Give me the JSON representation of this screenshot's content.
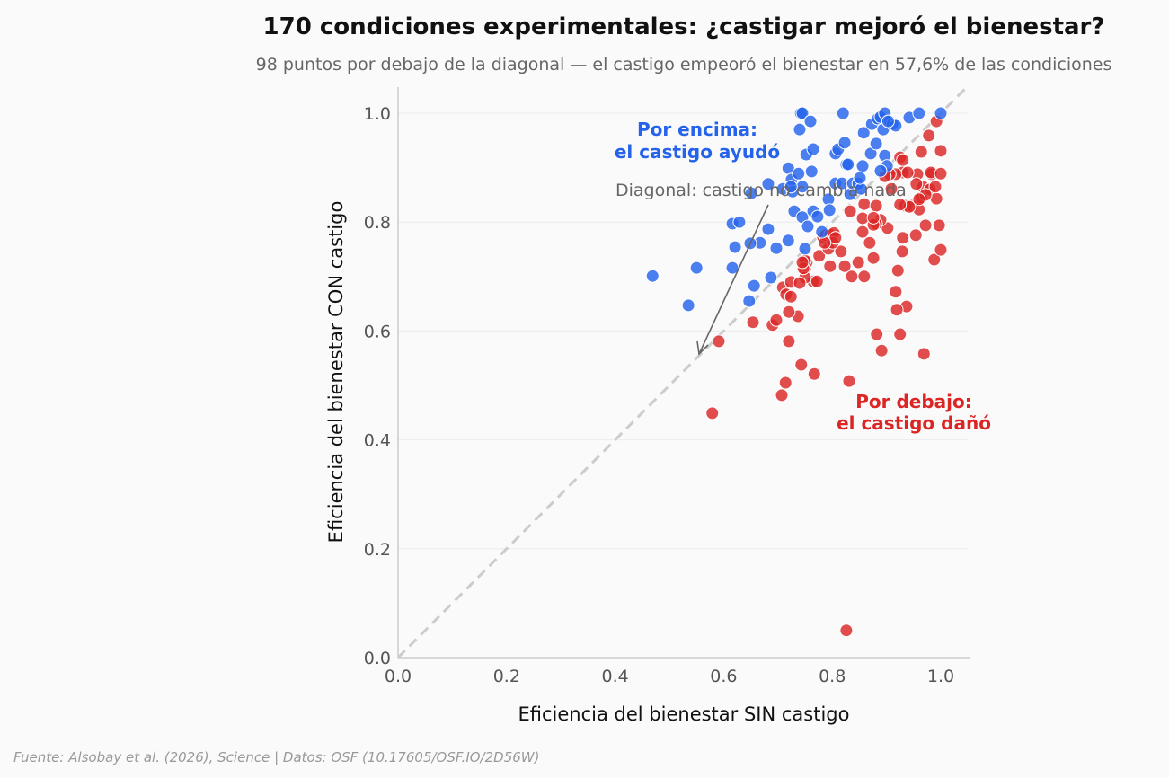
{
  "chart_data": {
    "type": "scatter",
    "title": "170 condiciones experimentales: ¿castigar mejoró el bienestar?",
    "subtitle": "98 puntos por debajo de la diagonal — el castigo empeoró el bienestar en 57,6% de las condiciones",
    "xlabel": "Eficiencia del bienestar SIN castigo",
    "ylabel": "Eficiencia del bienestar CON castigo",
    "xlim": [
      0,
      1.05
    ],
    "ylim": [
      0,
      1.05
    ],
    "xticks": [
      "0.0",
      "0.2",
      "0.4",
      "0.6",
      "0.8",
      "1.0"
    ],
    "yticks": [
      "0.0",
      "0.2",
      "0.4",
      "0.6",
      "0.8",
      "1.0"
    ],
    "grid": true,
    "legend": "none",
    "colors": {
      "above": "#2563eb",
      "below": "#dc2626",
      "diagonal": "#cccccc"
    },
    "annotations": {
      "above_line1": "Por encima:",
      "above_line2": "el castigo ayudó",
      "diagonal": "Diagonal: castigo no cambia nada",
      "below_line1": "Por debajo:",
      "below_line2": "el castigo dañó"
    },
    "points_above": [
      [
        0.469,
        0.701
      ],
      [
        0.535,
        0.647
      ],
      [
        0.55,
        0.716
      ],
      [
        0.616,
        0.797
      ],
      [
        0.629,
        0.8
      ],
      [
        0.621,
        0.754
      ],
      [
        0.616,
        0.716
      ],
      [
        0.651,
        0.853
      ],
      [
        0.647,
        0.655
      ],
      [
        0.656,
        0.683
      ],
      [
        0.667,
        0.762
      ],
      [
        0.649,
        0.761
      ],
      [
        0.682,
        0.87
      ],
      [
        0.682,
        0.787
      ],
      [
        0.687,
        0.698
      ],
      [
        0.697,
        0.752
      ],
      [
        0.709,
        0.861
      ],
      [
        0.719,
        0.899
      ],
      [
        0.719,
        0.766
      ],
      [
        0.725,
        0.878
      ],
      [
        0.727,
        0.856
      ],
      [
        0.73,
        0.82
      ],
      [
        0.74,
        0.97
      ],
      [
        0.742,
        1.0
      ],
      [
        0.745,
        1.0
      ],
      [
        0.745,
        0.865
      ],
      [
        0.745,
        0.809
      ],
      [
        0.75,
        0.751
      ],
      [
        0.752,
        0.924
      ],
      [
        0.755,
        0.792
      ],
      [
        0.76,
        0.985
      ],
      [
        0.762,
        0.893
      ],
      [
        0.765,
        0.934
      ],
      [
        0.765,
        0.82
      ],
      [
        0.773,
        0.81
      ],
      [
        0.781,
        0.782
      ],
      [
        0.793,
        0.842
      ],
      [
        0.795,
        0.822
      ],
      [
        0.806,
        0.926
      ],
      [
        0.811,
        0.934
      ],
      [
        0.82,
        1.0
      ],
      [
        0.823,
        0.946
      ],
      [
        0.826,
        0.906
      ],
      [
        0.829,
        0.906
      ],
      [
        0.833,
        0.851
      ],
      [
        0.806,
        0.871
      ],
      [
        0.818,
        0.871
      ],
      [
        0.838,
        0.871
      ],
      [
        0.848,
        0.871
      ],
      [
        0.853,
        0.861
      ],
      [
        0.856,
        0.903
      ],
      [
        0.858,
        0.964
      ],
      [
        0.871,
        0.926
      ],
      [
        0.873,
        0.98
      ],
      [
        0.881,
        0.944
      ],
      [
        0.884,
        0.99
      ],
      [
        0.889,
        0.993
      ],
      [
        0.897,
        1.0
      ],
      [
        0.894,
        0.97
      ],
      [
        0.897,
        0.922
      ],
      [
        0.901,
        0.903
      ],
      [
        0.906,
        0.985
      ],
      [
        0.911,
        0.98
      ],
      [
        0.917,
        0.977
      ],
      [
        0.942,
        0.992
      ],
      [
        0.96,
        1.0
      ],
      [
        1.0,
        1.0
      ],
      [
        0.889,
        0.894
      ],
      [
        0.851,
        0.881
      ],
      [
        0.738,
        0.889
      ],
      [
        0.724,
        0.865
      ],
      [
        0.903,
        0.985
      ]
    ],
    "points_below": [
      [
        0.826,
        0.05
      ],
      [
        0.579,
        0.449
      ],
      [
        0.591,
        0.581
      ],
      [
        0.654,
        0.616
      ],
      [
        0.69,
        0.611
      ],
      [
        0.697,
        0.62
      ],
      [
        0.707,
        0.482
      ],
      [
        0.714,
        0.505
      ],
      [
        0.72,
        0.581
      ],
      [
        0.737,
        0.627
      ],
      [
        0.743,
        0.538
      ],
      [
        0.767,
        0.521
      ],
      [
        0.709,
        0.68
      ],
      [
        0.715,
        0.667
      ],
      [
        0.724,
        0.69
      ],
      [
        0.72,
        0.635
      ],
      [
        0.75,
        0.713
      ],
      [
        0.753,
        0.726
      ],
      [
        0.765,
        0.691
      ],
      [
        0.772,
        0.691
      ],
      [
        0.776,
        0.738
      ],
      [
        0.783,
        0.772
      ],
      [
        0.788,
        0.776
      ],
      [
        0.796,
        0.777
      ],
      [
        0.793,
        0.751
      ],
      [
        0.796,
        0.719
      ],
      [
        0.816,
        0.746
      ],
      [
        0.823,
        0.719
      ],
      [
        0.831,
        0.508
      ],
      [
        0.836,
        0.7
      ],
      [
        0.848,
        0.726
      ],
      [
        0.859,
        0.7
      ],
      [
        0.869,
        0.762
      ],
      [
        0.876,
        0.734
      ],
      [
        0.882,
        0.594
      ],
      [
        0.891,
        0.564
      ],
      [
        0.969,
        0.558
      ],
      [
        0.937,
        0.645
      ],
      [
        0.925,
        0.594
      ],
      [
        0.919,
        0.639
      ],
      [
        0.917,
        0.672
      ],
      [
        0.921,
        0.711
      ],
      [
        0.929,
        0.746
      ],
      [
        0.93,
        0.771
      ],
      [
        0.934,
        0.83
      ],
      [
        0.947,
        0.83
      ],
      [
        0.954,
        0.776
      ],
      [
        0.96,
        0.823
      ],
      [
        0.964,
        0.845
      ],
      [
        0.967,
        0.865
      ],
      [
        0.972,
        0.794
      ],
      [
        0.98,
        0.86
      ],
      [
        0.988,
        0.731
      ],
      [
        0.997,
        0.794
      ],
      [
        1.0,
        0.749
      ],
      [
        0.992,
        0.843
      ],
      [
        0.99,
        0.865
      ],
      [
        0.983,
        0.888
      ],
      [
        0.978,
        0.959
      ],
      [
        0.992,
        0.985
      ],
      [
        1.0,
        0.931
      ],
      [
        0.964,
        0.929
      ],
      [
        0.982,
        0.891
      ],
      [
        1.0,
        0.889
      ],
      [
        0.957,
        0.888
      ],
      [
        0.972,
        0.85
      ],
      [
        0.925,
        0.919
      ],
      [
        0.93,
        0.914
      ],
      [
        0.93,
        0.891
      ],
      [
        0.917,
        0.888
      ],
      [
        0.906,
        0.888
      ],
      [
        0.897,
        0.884
      ],
      [
        0.909,
        0.861
      ],
      [
        0.902,
        0.789
      ],
      [
        0.889,
        0.804
      ],
      [
        0.881,
        0.797
      ],
      [
        0.876,
        0.795
      ],
      [
        0.856,
        0.807
      ],
      [
        0.856,
        0.782
      ],
      [
        0.859,
        0.833
      ],
      [
        0.881,
        0.83
      ],
      [
        0.833,
        0.82
      ],
      [
        0.803,
        0.78
      ],
      [
        0.801,
        0.762
      ],
      [
        0.806,
        0.771
      ],
      [
        0.786,
        0.762
      ],
      [
        0.75,
        0.698
      ],
      [
        0.75,
        0.729
      ],
      [
        0.74,
        0.688
      ],
      [
        0.724,
        0.663
      ],
      [
        0.942,
        0.828
      ],
      [
        0.925,
        0.832
      ],
      [
        0.96,
        0.842
      ],
      [
        0.955,
        0.87
      ],
      [
        0.939,
        0.891
      ],
      [
        0.747,
        0.715
      ],
      [
        0.876,
        0.808
      ],
      [
        0.745,
        0.726
      ]
    ]
  },
  "footer": "Fuente: Alsobay et al. (2026), Science | Datos: OSF (10.17605/OSF.IO/2D56W)"
}
